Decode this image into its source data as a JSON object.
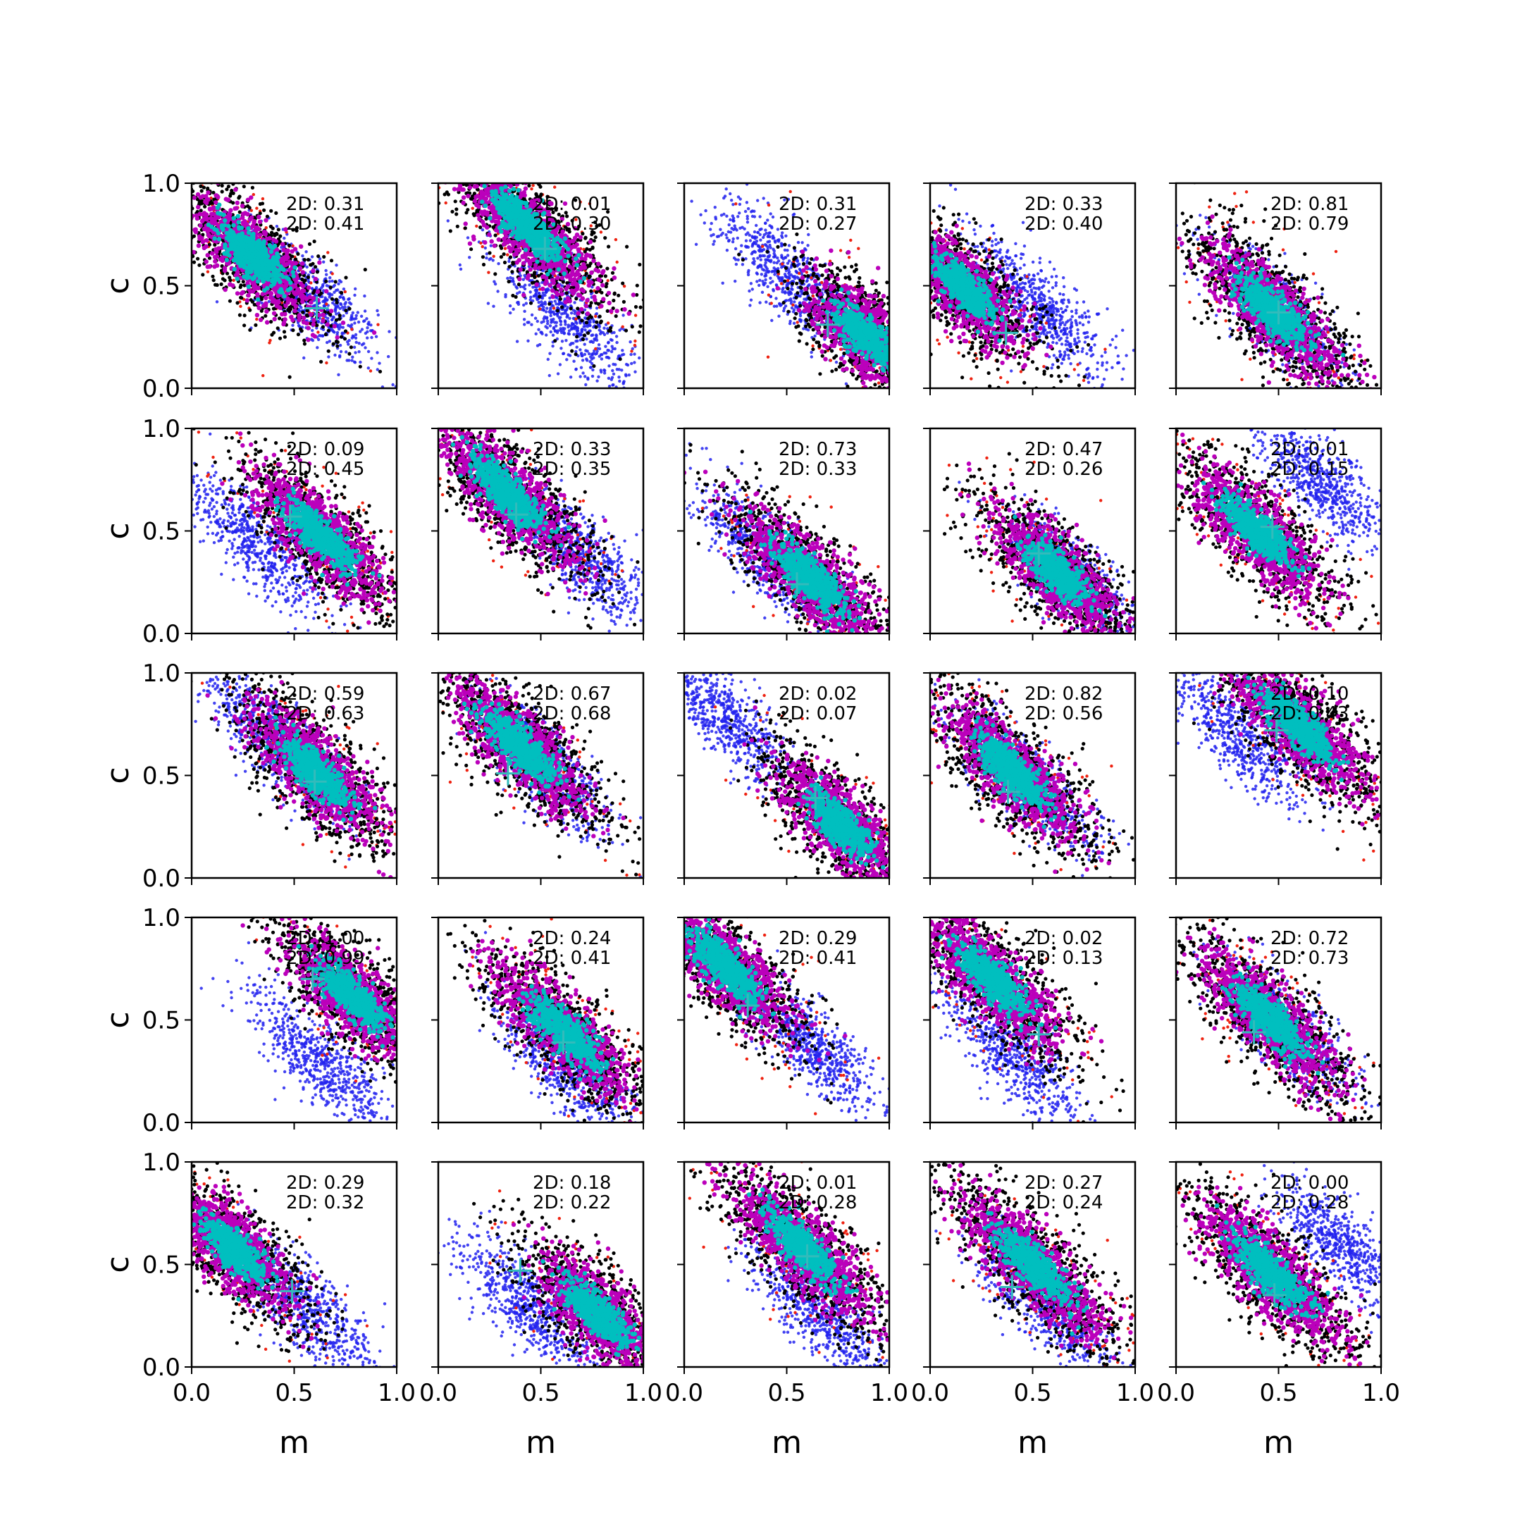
{
  "chart_data": {
    "type": "scatter",
    "title": "",
    "xlabel": "m",
    "ylabel": "c",
    "xlim": [
      0,
      1
    ],
    "ylim": [
      0,
      1
    ],
    "xticks": [
      "0.0",
      "0.5",
      "1.0"
    ],
    "yticks": [
      "0.0",
      "0.5",
      "1.0"
    ],
    "grid": false,
    "legend": "none",
    "grid_rows": 5,
    "grid_cols": 5,
    "colors": {
      "blue": "#2222ee",
      "red": "#ee2211",
      "black": "#000000",
      "magenta": "#bb00bb",
      "cyan": "#00bfbf",
      "marker": "#33bbbb"
    },
    "panels": [
      {
        "row": 0,
        "col": 0,
        "annot": [
          "2D: 0.31",
          "2D: 0.41"
        ],
        "blue": {
          "cx": 0.58,
          "cy": 0.44,
          "sx": 0.2,
          "sy": 0.08
        },
        "main": {
          "cx": 0.3,
          "cy": 0.64,
          "sx": 0.26,
          "sy": 0.1
        },
        "marker": {
          "m": 0.61,
          "c": 0.39
        }
      },
      {
        "row": 0,
        "col": 1,
        "annot": [
          "2D: 0.01",
          "2D: 0.30"
        ],
        "blue": {
          "cx": 0.62,
          "cy": 0.35,
          "sx": 0.22,
          "sy": 0.08
        },
        "main": {
          "cx": 0.44,
          "cy": 0.78,
          "sx": 0.3,
          "sy": 0.1
        },
        "marker": {
          "m": 0.52,
          "c": 0.68
        }
      },
      {
        "row": 0,
        "col": 2,
        "annot": [
          "2D: 0.31",
          "2D: 0.27"
        ],
        "blue": {
          "cx": 0.5,
          "cy": 0.55,
          "sx": 0.22,
          "sy": 0.08
        },
        "main": {
          "cx": 0.88,
          "cy": 0.26,
          "sx": 0.22,
          "sy": 0.1
        },
        "marker": {
          "m": 0.7,
          "c": 0.31
        }
      },
      {
        "row": 0,
        "col": 3,
        "annot": [
          "2D: 0.33",
          "2D: 0.40"
        ],
        "blue": {
          "cx": 0.55,
          "cy": 0.38,
          "sx": 0.24,
          "sy": 0.08
        },
        "main": {
          "cx": 0.16,
          "cy": 0.49,
          "sx": 0.26,
          "sy": 0.1
        },
        "marker": {
          "m": 0.37,
          "c": 0.27
        }
      },
      {
        "row": 0,
        "col": 4,
        "annot": [
          "2D: 0.81",
          "2D: 0.79"
        ],
        "blue": {
          "cx": 0.48,
          "cy": 0.38,
          "sx": 0.22,
          "sy": 0.08
        },
        "main": {
          "cx": 0.48,
          "cy": 0.37,
          "sx": 0.3,
          "sy": 0.1
        },
        "marker": {
          "m": 0.5,
          "c": 0.37
        }
      },
      {
        "row": 1,
        "col": 0,
        "annot": [
          "2D: 0.09",
          "2D: 0.45"
        ],
        "blue": {
          "cx": 0.3,
          "cy": 0.46,
          "sx": 0.24,
          "sy": 0.08
        },
        "main": {
          "cx": 0.62,
          "cy": 0.48,
          "sx": 0.28,
          "sy": 0.1
        },
        "marker": {
          "m": 0.48,
          "c": 0.57
        }
      },
      {
        "row": 1,
        "col": 1,
        "annot": [
          "2D: 0.33",
          "2D: 0.35"
        ],
        "blue": {
          "cx": 0.7,
          "cy": 0.38,
          "sx": 0.22,
          "sy": 0.08
        },
        "main": {
          "cx": 0.34,
          "cy": 0.68,
          "sx": 0.3,
          "sy": 0.1
        },
        "marker": {
          "m": 0.38,
          "c": 0.58
        }
      },
      {
        "row": 1,
        "col": 2,
        "annot": [
          "2D: 0.73",
          "2D: 0.33"
        ],
        "blue": {
          "cx": 0.4,
          "cy": 0.38,
          "sx": 0.22,
          "sy": 0.08
        },
        "main": {
          "cx": 0.62,
          "cy": 0.26,
          "sx": 0.3,
          "sy": 0.1
        },
        "marker": {
          "m": 0.55,
          "c": 0.24
        }
      },
      {
        "row": 1,
        "col": 3,
        "annot": [
          "2D: 0.47",
          "2D: 0.26"
        ],
        "blue": {
          "cx": 0.7,
          "cy": 0.25,
          "sx": 0.22,
          "sy": 0.08
        },
        "main": {
          "cx": 0.62,
          "cy": 0.3,
          "sx": 0.26,
          "sy": 0.1
        },
        "marker": {
          "m": 0.53,
          "c": 0.39
        }
      },
      {
        "row": 1,
        "col": 4,
        "annot": [
          "2D: 0.01",
          "2D: 0.15"
        ],
        "blue": {
          "cx": 0.7,
          "cy": 0.74,
          "sx": 0.22,
          "sy": 0.08
        },
        "main": {
          "cx": 0.4,
          "cy": 0.5,
          "sx": 0.28,
          "sy": 0.1
        },
        "marker": {
          "m": 0.47,
          "c": 0.52
        }
      },
      {
        "row": 2,
        "col": 0,
        "annot": [
          "2D: 0.59",
          "2D: 0.63"
        ],
        "blue": {
          "cx": 0.4,
          "cy": 0.68,
          "sx": 0.24,
          "sy": 0.08
        },
        "main": {
          "cx": 0.6,
          "cy": 0.52,
          "sx": 0.28,
          "sy": 0.1
        },
        "marker": {
          "m": 0.6,
          "c": 0.47
        }
      },
      {
        "row": 2,
        "col": 1,
        "annot": [
          "2D: 0.67",
          "2D: 0.68"
        ],
        "blue": {
          "cx": 0.5,
          "cy": 0.56,
          "sx": 0.22,
          "sy": 0.08
        },
        "main": {
          "cx": 0.4,
          "cy": 0.64,
          "sx": 0.3,
          "sy": 0.1
        },
        "marker": {
          "m": 0.34,
          "c": 0.51
        }
      },
      {
        "row": 2,
        "col": 2,
        "annot": [
          "2D: 0.02",
          "2D: 0.07"
        ],
        "blue": {
          "cx": 0.18,
          "cy": 0.8,
          "sx": 0.22,
          "sy": 0.08
        },
        "main": {
          "cx": 0.76,
          "cy": 0.26,
          "sx": 0.26,
          "sy": 0.1
        },
        "marker": {
          "m": 0.64,
          "c": 0.39
        }
      },
      {
        "row": 2,
        "col": 3,
        "annot": [
          "2D: 0.82",
          "2D: 0.56"
        ],
        "blue": {
          "cx": 0.46,
          "cy": 0.48,
          "sx": 0.22,
          "sy": 0.08
        },
        "main": {
          "cx": 0.4,
          "cy": 0.52,
          "sx": 0.3,
          "sy": 0.1
        },
        "marker": {
          "m": 0.38,
          "c": 0.42
        }
      },
      {
        "row": 2,
        "col": 4,
        "annot": [
          "2D: 0.10",
          "2D: 0.43"
        ],
        "blue": {
          "cx": 0.3,
          "cy": 0.7,
          "sx": 0.24,
          "sy": 0.08
        },
        "main": {
          "cx": 0.6,
          "cy": 0.74,
          "sx": 0.3,
          "sy": 0.1
        },
        "marker": {
          "m": 0.49,
          "c": 0.72
        }
      },
      {
        "row": 3,
        "col": 0,
        "annot": [
          "2D: 1.00",
          "2D: 0.99"
        ],
        "blue": {
          "cx": 0.64,
          "cy": 0.28,
          "sx": 0.24,
          "sy": 0.08
        },
        "main": {
          "cx": 0.78,
          "cy": 0.62,
          "sx": 0.26,
          "sy": 0.1
        },
        "marker": {
          "m": 0.59,
          "c": 0.7
        }
      },
      {
        "row": 3,
        "col": 1,
        "annot": [
          "2D: 0.24",
          "2D: 0.41"
        ],
        "blue": {
          "cx": 0.62,
          "cy": 0.28,
          "sx": 0.24,
          "sy": 0.08
        },
        "main": {
          "cx": 0.62,
          "cy": 0.44,
          "sx": 0.3,
          "sy": 0.1
        },
        "marker": {
          "m": 0.61,
          "c": 0.39
        }
      },
      {
        "row": 3,
        "col": 2,
        "annot": [
          "2D: 0.29",
          "2D: 0.41"
        ],
        "blue": {
          "cx": 0.62,
          "cy": 0.38,
          "sx": 0.22,
          "sy": 0.08
        },
        "main": {
          "cx": 0.2,
          "cy": 0.76,
          "sx": 0.28,
          "sy": 0.1
        },
        "marker": {
          "m": 0.31,
          "c": 0.57
        }
      },
      {
        "row": 3,
        "col": 3,
        "annot": [
          "2D: 0.02",
          "2D: 0.13"
        ],
        "blue": {
          "cx": 0.4,
          "cy": 0.33,
          "sx": 0.24,
          "sy": 0.08
        },
        "main": {
          "cx": 0.3,
          "cy": 0.7,
          "sx": 0.3,
          "sy": 0.1
        },
        "marker": {
          "m": 0.53,
          "c": 0.43
        }
      },
      {
        "row": 3,
        "col": 4,
        "annot": [
          "2D: 0.72",
          "2D: 0.73"
        ],
        "blue": {
          "cx": 0.52,
          "cy": 0.46,
          "sx": 0.22,
          "sy": 0.08
        },
        "main": {
          "cx": 0.46,
          "cy": 0.5,
          "sx": 0.3,
          "sy": 0.1
        },
        "marker": {
          "m": 0.38,
          "c": 0.44
        }
      },
      {
        "row": 4,
        "col": 0,
        "annot": [
          "2D: 0.29",
          "2D: 0.32"
        ],
        "blue": {
          "cx": 0.56,
          "cy": 0.28,
          "sx": 0.24,
          "sy": 0.08
        },
        "main": {
          "cx": 0.2,
          "cy": 0.58,
          "sx": 0.26,
          "sy": 0.1
        },
        "marker": {
          "m": 0.49,
          "c": 0.37
        }
      },
      {
        "row": 4,
        "col": 1,
        "annot": [
          "2D: 0.18",
          "2D: 0.22"
        ],
        "blue": {
          "cx": 0.44,
          "cy": 0.3,
          "sx": 0.22,
          "sy": 0.08
        },
        "main": {
          "cx": 0.78,
          "cy": 0.26,
          "sx": 0.26,
          "sy": 0.1
        },
        "marker": {
          "m": 0.4,
          "c": 0.47
        }
      },
      {
        "row": 4,
        "col": 2,
        "annot": [
          "2D: 0.01",
          "2D: 0.28"
        ],
        "blue": {
          "cx": 0.66,
          "cy": 0.26,
          "sx": 0.24,
          "sy": 0.08
        },
        "main": {
          "cx": 0.58,
          "cy": 0.58,
          "sx": 0.32,
          "sy": 0.1
        },
        "marker": {
          "m": 0.6,
          "c": 0.54
        }
      },
      {
        "row": 4,
        "col": 3,
        "annot": [
          "2D: 0.27",
          "2D: 0.24"
        ],
        "blue": {
          "cx": 0.56,
          "cy": 0.3,
          "sx": 0.24,
          "sy": 0.08
        },
        "main": {
          "cx": 0.5,
          "cy": 0.5,
          "sx": 0.32,
          "sy": 0.1
        },
        "marker": {
          "m": 0.4,
          "c": 0.39
        }
      },
      {
        "row": 4,
        "col": 4,
        "annot": [
          "2D: 0.00",
          "2D: 0.28"
        ],
        "blue": {
          "cx": 0.8,
          "cy": 0.6,
          "sx": 0.2,
          "sy": 0.08
        },
        "main": {
          "cx": 0.46,
          "cy": 0.46,
          "sx": 0.32,
          "sy": 0.1
        },
        "marker": {
          "m": 0.48,
          "c": 0.35
        }
      }
    ]
  }
}
